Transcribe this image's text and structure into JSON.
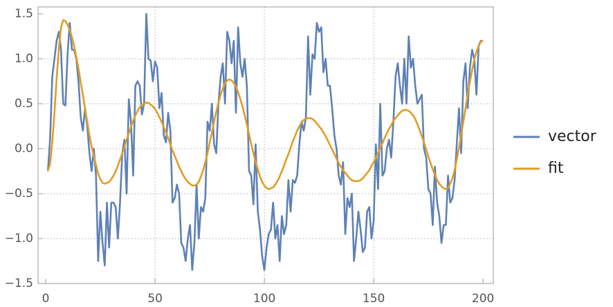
{
  "chart_data": {
    "type": "line",
    "x": [
      1,
      2,
      3,
      4,
      5,
      6,
      7,
      8,
      9,
      10,
      11,
      12,
      13,
      14,
      15,
      16,
      17,
      18,
      19,
      20,
      21,
      22,
      23,
      24,
      25,
      26,
      27,
      28,
      29,
      30,
      31,
      32,
      33,
      34,
      35,
      36,
      37,
      38,
      39,
      40,
      41,
      42,
      43,
      44,
      45,
      46,
      47,
      48,
      49,
      50,
      51,
      52,
      53,
      54,
      55,
      56,
      57,
      58,
      59,
      60,
      61,
      62,
      63,
      64,
      65,
      66,
      67,
      68,
      69,
      70,
      71,
      72,
      73,
      74,
      75,
      76,
      77,
      78,
      79,
      80,
      81,
      82,
      83,
      84,
      85,
      86,
      87,
      88,
      89,
      90,
      91,
      92,
      93,
      94,
      95,
      96,
      97,
      98,
      99,
      100,
      101,
      102,
      103,
      104,
      105,
      106,
      107,
      108,
      109,
      110,
      111,
      112,
      113,
      114,
      115,
      116,
      117,
      118,
      119,
      120,
      121,
      122,
      123,
      124,
      125,
      126,
      127,
      128,
      129,
      130,
      131,
      132,
      133,
      134,
      135,
      136,
      137,
      138,
      139,
      140,
      141,
      142,
      143,
      144,
      145,
      146,
      147,
      148,
      149,
      150,
      151,
      152,
      153,
      154,
      155,
      156,
      157,
      158,
      159,
      160,
      161,
      162,
      163,
      164,
      165,
      166,
      167,
      168,
      169,
      170,
      171,
      172,
      173,
      174,
      175,
      176,
      177,
      178,
      179,
      180,
      181,
      182,
      183,
      184,
      185,
      186,
      187,
      188,
      189,
      190,
      191,
      192,
      193,
      194,
      195,
      196,
      197,
      198,
      199,
      200
    ],
    "series": [
      {
        "name": "vector",
        "color": "#5e81b5",
        "values": [
          -0.25,
          0.1,
          0.8,
          1.0,
          1.2,
          1.3,
          1.1,
          0.5,
          0.48,
          1.05,
          1.4,
          1.1,
          1.1,
          1.0,
          0.75,
          0.35,
          0.2,
          0.45,
          0.25,
          -0.05,
          -0.25,
          0.0,
          -0.3,
          -1.25,
          -0.7,
          -1.05,
          -1.3,
          -0.6,
          -1.1,
          -0.6,
          -0.6,
          -0.65,
          -1.0,
          -0.6,
          -0.05,
          0.1,
          -0.5,
          0.55,
          0.3,
          -0.3,
          0.7,
          0.75,
          0.7,
          0.38,
          0.5,
          1.5,
          1.0,
          0.98,
          0.75,
          0.97,
          0.9,
          0.45,
          0.62,
          0.15,
          0.07,
          0.4,
          0.2,
          -0.6,
          -0.55,
          -0.4,
          -0.5,
          -1.05,
          -1.1,
          -1.25,
          -1.0,
          -0.85,
          -1.35,
          -1.05,
          -0.4,
          -1.0,
          -0.65,
          -0.7,
          -0.55,
          0.3,
          0.2,
          0.5,
          0.05,
          -0.05,
          0.5,
          0.8,
          0.95,
          0.5,
          1.3,
          1.2,
          0.95,
          1.2,
          0.4,
          1.35,
          0.95,
          0.8,
          1.0,
          0.7,
          -0.25,
          -0.3,
          -0.62,
          0.05,
          -0.7,
          -0.9,
          -1.2,
          -1.35,
          -1.1,
          -0.95,
          -0.9,
          -0.6,
          -1.0,
          -0.85,
          -1.25,
          -0.75,
          -0.95,
          -0.85,
          -0.35,
          -0.7,
          -0.35,
          -0.38,
          -0.3,
          0.05,
          0.3,
          0.2,
          0.35,
          1.25,
          0.6,
          1.05,
          1.0,
          1.4,
          1.3,
          1.35,
          0.85,
          1.0,
          0.7,
          0.7,
          0.45,
          0.15,
          0.0,
          -0.3,
          -0.4,
          -0.15,
          -0.95,
          -0.55,
          -0.65,
          -0.5,
          -1.25,
          -1.0,
          -0.7,
          -0.9,
          -1.15,
          -1.1,
          -0.7,
          -0.65,
          -1.0,
          -0.8,
          0.05,
          -0.45,
          0.5,
          -0.3,
          -0.25,
          0.0,
          0.1,
          -0.1,
          0.3,
          0.8,
          0.95,
          0.7,
          0.5,
          1.0,
          0.5,
          1.25,
          0.9,
          1.0,
          0.7,
          0.5,
          0.55,
          0.6,
          0.0,
          -0.1,
          -0.45,
          -0.5,
          -0.85,
          -0.2,
          -0.6,
          -0.75,
          -1.05,
          -0.85,
          -0.85,
          -0.3,
          -0.6,
          -0.55,
          -0.35,
          0.05,
          0.45,
          -0.05,
          0.75,
          0.95,
          0.45,
          0.9,
          1.1,
          1.0,
          0.6,
          1.15,
          1.2,
          1.2
        ]
      },
      {
        "name": "fit",
        "color": "#e19c24",
        "values": [
          -0.25,
          -0.17,
          0.07,
          0.4,
          0.78,
          1.11,
          1.35,
          1.43,
          1.42,
          1.38,
          1.32,
          1.24,
          1.14,
          1.02,
          0.89,
          0.74,
          0.6,
          0.44,
          0.3,
          0.15,
          0.02,
          -0.08,
          -0.18,
          -0.28,
          -0.34,
          -0.38,
          -0.39,
          -0.38,
          -0.37,
          -0.34,
          -0.3,
          -0.25,
          -0.19,
          -0.12,
          -0.05,
          0.02,
          0.1,
          0.17,
          0.24,
          0.31,
          0.37,
          0.42,
          0.46,
          0.49,
          0.5,
          0.51,
          0.51,
          0.49,
          0.47,
          0.44,
          0.4,
          0.35,
          0.3,
          0.24,
          0.18,
          0.12,
          0.05,
          -0.02,
          -0.08,
          -0.14,
          -0.2,
          -0.25,
          -0.3,
          -0.34,
          -0.37,
          -0.39,
          -0.41,
          -0.41,
          -0.4,
          -0.37,
          -0.31,
          -0.24,
          -0.15,
          -0.05,
          0.07,
          0.18,
          0.3,
          0.41,
          0.51,
          0.6,
          0.67,
          0.73,
          0.76,
          0.77,
          0.76,
          0.73,
          0.69,
          0.63,
          0.55,
          0.47,
          0.37,
          0.27,
          0.16,
          0.05,
          -0.05,
          -0.15,
          -0.23,
          -0.31,
          -0.37,
          -0.41,
          -0.44,
          -0.45,
          -0.44,
          -0.43,
          -0.4,
          -0.36,
          -0.31,
          -0.25,
          -0.19,
          -0.12,
          -0.06,
          0.01,
          0.08,
          0.14,
          0.2,
          0.25,
          0.29,
          0.32,
          0.33,
          0.34,
          0.34,
          0.33,
          0.31,
          0.28,
          0.25,
          0.22,
          0.18,
          0.14,
          0.09,
          0.04,
          -0.01,
          -0.06,
          -0.11,
          -0.16,
          -0.2,
          -0.24,
          -0.27,
          -0.3,
          -0.33,
          -0.35,
          -0.36,
          -0.36,
          -0.36,
          -0.35,
          -0.33,
          -0.3,
          -0.27,
          -0.24,
          -0.19,
          -0.15,
          -0.1,
          -0.05,
          0.01,
          0.06,
          0.12,
          0.17,
          0.22,
          0.26,
          0.31,
          0.34,
          0.37,
          0.4,
          0.42,
          0.43,
          0.43,
          0.42,
          0.4,
          0.37,
          0.33,
          0.27,
          0.21,
          0.14,
          0.07,
          -0.01,
          -0.09,
          -0.16,
          -0.23,
          -0.29,
          -0.35,
          -0.39,
          -0.42,
          -0.44,
          -0.45,
          -0.44,
          -0.39,
          -0.33,
          -0.24,
          -0.12,
          0.01,
          0.15,
          0.3,
          0.45,
          0.6,
          0.74,
          0.87,
          0.99,
          1.08,
          1.14,
          1.19,
          1.2
        ]
      }
    ],
    "xlim": [
      -3.5,
      204.7
    ],
    "xticks": [
      0,
      50,
      100,
      150,
      200
    ],
    "ylim": [
      -1.5,
      1.577
    ],
    "yticks": [
      {
        "value": -1.5,
        "label": "−1.5"
      },
      {
        "value": -1,
        "label": "−1.0"
      },
      {
        "value": -0.5,
        "label": "−0.5"
      },
      {
        "value": 0,
        "label": "0.0"
      },
      0.5,
      {
        "value": 1,
        "label": "1.0"
      },
      1.5
    ],
    "xgrid": [
      50,
      100,
      150
    ],
    "ygrid": [
      -1,
      -0.5,
      0,
      0.5,
      1
    ],
    "legend": "right"
  }
}
